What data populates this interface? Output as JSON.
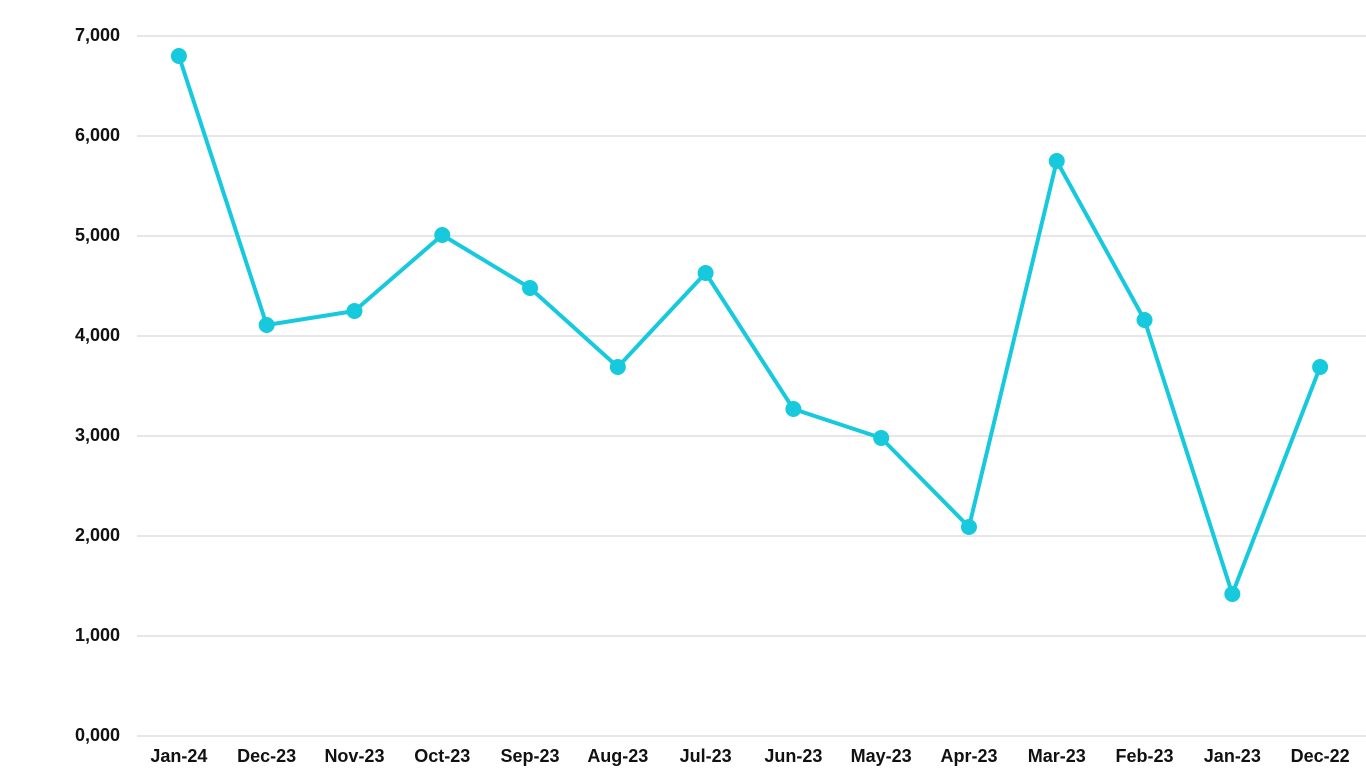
{
  "chart_data": {
    "type": "line",
    "categories": [
      "Jan-24",
      "Dec-23",
      "Nov-23",
      "Oct-23",
      "Sep-23",
      "Aug-23",
      "Jul-23",
      "Jun-23",
      "May-23",
      "Apr-23",
      "Mar-23",
      "Feb-23",
      "Jan-23",
      "Dec-22"
    ],
    "values": [
      6800,
      4110,
      4250,
      5010,
      4480,
      3690,
      4630,
      3270,
      2980,
      2090,
      5750,
      4160,
      1420,
      3690
    ],
    "color": "#17c9dd",
    "ylim": [
      0,
      7000
    ],
    "yticks": [
      {
        "value": 0,
        "label": "0,000"
      },
      {
        "value": 1000,
        "label": "1,000"
      },
      {
        "value": 2000,
        "label": "2,000"
      },
      {
        "value": 3000,
        "label": "3,000"
      },
      {
        "value": 4000,
        "label": "4,000"
      },
      {
        "value": 5000,
        "label": "5,000"
      },
      {
        "value": 6000,
        "label": "6,000"
      },
      {
        "value": 7000,
        "label": "7,000"
      }
    ],
    "grid": true
  }
}
